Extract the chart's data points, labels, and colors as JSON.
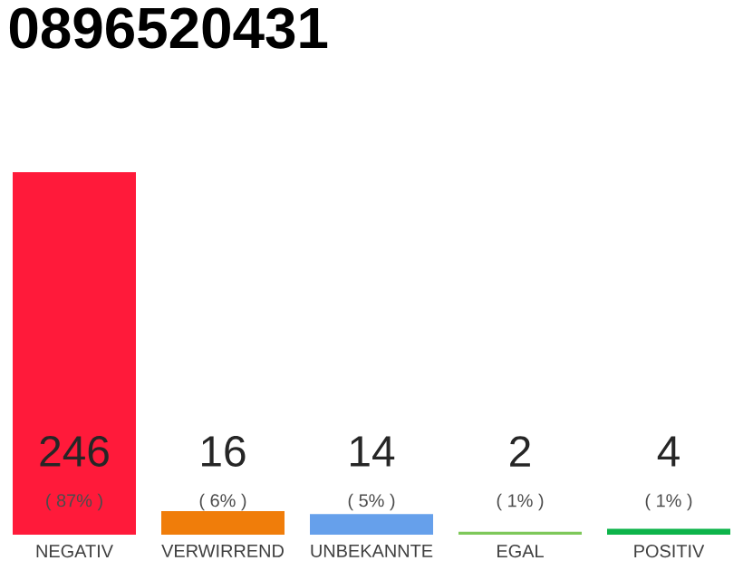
{
  "chart_data": {
    "type": "bar",
    "title": "0896520431",
    "categories": [
      "NEGATIV",
      "VERWIRREND",
      "UNBEKANNTE",
      "EGAL",
      "POSITIV"
    ],
    "values": [
      246,
      16,
      14,
      2,
      4
    ],
    "colors": [
      "#ff1a3a",
      "#f07d0a",
      "#66a0eb",
      "#7ec85a",
      "#0db44a"
    ],
    "data_labels": true,
    "annotations": [
      "( 87% )",
      "( 6% )",
      "( 5% )",
      "( 1% )",
      "( 1% )"
    ]
  }
}
